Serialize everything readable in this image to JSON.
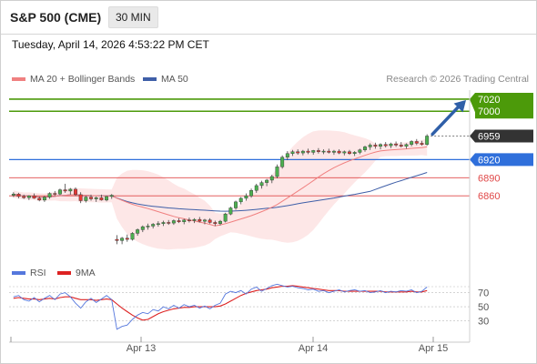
{
  "header": {
    "title": "S&P 500 (CME)",
    "timeframe": "30 MIN",
    "datetime": "Tuesday, April 14, 2026 4:53:22 PM CET"
  },
  "legend": {
    "ma20": "MA 20 + Bollinger Bands",
    "ma50": "MA 50",
    "copyright": "Research © 2026 Trading Central",
    "rsi": "RSI",
    "ma9": "9MA"
  },
  "colors": {
    "up": "#4caf50",
    "down": "#e53935",
    "ma20": "#f08080",
    "ma50": "#3f5fa8",
    "band": "#fde3e3",
    "resistance": "#4c9a0a",
    "pivot": "#2f6fdb",
    "support": "#e04848",
    "rsi": "#5577dd",
    "ma9": "#dd2222",
    "current": "#333333"
  },
  "chart_data": [
    {
      "type": "candlestick",
      "ylim": [
        6770,
        7035
      ],
      "xaxis": {
        "ticks": [
          "Apr 13",
          "Apr 14",
          "Apr 15"
        ]
      },
      "current_price": "6959",
      "levels": {
        "resistance": [
          "7020",
          "7000"
        ],
        "pivot": "6920",
        "support": [
          "6890",
          "6860"
        ]
      },
      "candles": [
        [
          6861,
          6866,
          6858,
          6863
        ],
        [
          6863,
          6865,
          6856,
          6859
        ],
        [
          6859,
          6862,
          6855,
          6857
        ],
        [
          6857,
          6861,
          6853,
          6860
        ],
        [
          6860,
          6864,
          6855,
          6856
        ],
        [
          6856,
          6859,
          6851,
          6853
        ],
        [
          6853,
          6860,
          6850,
          6858
        ],
        [
          6858,
          6866,
          6855,
          6864
        ],
        [
          6864,
          6868,
          6860,
          6863
        ],
        [
          6863,
          6872,
          6861,
          6870
        ],
        [
          6870,
          6880,
          6865,
          6868
        ],
        [
          6868,
          6873,
          6862,
          6871
        ],
        [
          6871,
          6874,
          6860,
          6862
        ],
        [
          6862,
          6866,
          6848,
          6852
        ],
        [
          6852,
          6860,
          6849,
          6858
        ],
        [
          6858,
          6862,
          6852,
          6855
        ],
        [
          6855,
          6859,
          6850,
          6857
        ],
        [
          6857,
          6862,
          6852,
          6853
        ],
        [
          6853,
          6860,
          6851,
          6859
        ],
        [
          6859,
          6863,
          6855,
          6861
        ],
        [
          6788,
          6795,
          6780,
          6786
        ],
        [
          6786,
          6792,
          6780,
          6790
        ],
        [
          6790,
          6796,
          6784,
          6788
        ],
        [
          6788,
          6800,
          6786,
          6798
        ],
        [
          6798,
          6806,
          6794,
          6804
        ],
        [
          6804,
          6811,
          6800,
          6809
        ],
        [
          6809,
          6814,
          6804,
          6810
        ],
        [
          6810,
          6815,
          6806,
          6813
        ],
        [
          6813,
          6818,
          6809,
          6814
        ],
        [
          6814,
          6819,
          6810,
          6816
        ],
        [
          6816,
          6820,
          6812,
          6815
        ],
        [
          6815,
          6821,
          6812,
          6819
        ],
        [
          6819,
          6823,
          6815,
          6817
        ],
        [
          6817,
          6822,
          6813,
          6820
        ],
        [
          6820,
          6824,
          6816,
          6819
        ],
        [
          6819,
          6823,
          6815,
          6821
        ],
        [
          6821,
          6825,
          6816,
          6818
        ],
        [
          6818,
          6822,
          6813,
          6820
        ],
        [
          6820,
          6823,
          6814,
          6816
        ],
        [
          6816,
          6819,
          6810,
          6814
        ],
        [
          6814,
          6820,
          6811,
          6818
        ],
        [
          6818,
          6832,
          6816,
          6830
        ],
        [
          6830,
          6842,
          6828,
          6840
        ],
        [
          6840,
          6852,
          6837,
          6850
        ],
        [
          6850,
          6858,
          6846,
          6856
        ],
        [
          6856,
          6864,
          6852,
          6860
        ],
        [
          6860,
          6872,
          6857,
          6869
        ],
        [
          6869,
          6880,
          6865,
          6877
        ],
        [
          6877,
          6885,
          6872,
          6882
        ],
        [
          6882,
          6888,
          6876,
          6886
        ],
        [
          6886,
          6895,
          6881,
          6892
        ],
        [
          6892,
          6912,
          6889,
          6908
        ],
        [
          6908,
          6927,
          6905,
          6924
        ],
        [
          6924,
          6934,
          6919,
          6930
        ],
        [
          6930,
          6936,
          6926,
          6933
        ],
        [
          6933,
          6937,
          6928,
          6931
        ],
        [
          6931,
          6936,
          6927,
          6934
        ],
        [
          6934,
          6938,
          6929,
          6932
        ],
        [
          6932,
          6936,
          6928,
          6935
        ],
        [
          6935,
          6939,
          6930,
          6933
        ],
        [
          6933,
          6937,
          6929,
          6934
        ],
        [
          6934,
          6938,
          6930,
          6932
        ],
        [
          6932,
          6936,
          6928,
          6934
        ],
        [
          6934,
          6937,
          6929,
          6931
        ],
        [
          6931,
          6935,
          6927,
          6933
        ],
        [
          6933,
          6936,
          6928,
          6930
        ],
        [
          6930,
          6934,
          6926,
          6932
        ],
        [
          6932,
          6938,
          6929,
          6936
        ],
        [
          6936,
          6943,
          6933,
          6941
        ],
        [
          6941,
          6947,
          6936,
          6944
        ],
        [
          6944,
          6948,
          6938,
          6942
        ],
        [
          6942,
          6947,
          6937,
          6945
        ],
        [
          6945,
          6949,
          6940,
          6943
        ],
        [
          6943,
          6948,
          6939,
          6946
        ],
        [
          6946,
          6950,
          6941,
          6944
        ],
        [
          6944,
          6949,
          6940,
          6942
        ],
        [
          6942,
          6947,
          6938,
          6945
        ],
        [
          6945,
          6952,
          6942,
          6950
        ],
        [
          6950,
          6954,
          6944,
          6947
        ],
        [
          6947,
          6951,
          6943,
          6945
        ],
        [
          6945,
          6962,
          6943,
          6959
        ]
      ]
    },
    {
      "type": "line",
      "name": "RSI",
      "yticks": [
        "70",
        "50",
        "30"
      ],
      "ylim": [
        10,
        85
      ],
      "series": [
        {
          "name": "RSI",
          "values": [
            64,
            66,
            60,
            58,
            63,
            57,
            62,
            66,
            60,
            68,
            70,
            64,
            55,
            48,
            57,
            62,
            56,
            61,
            66,
            60,
            18,
            22,
            24,
            32,
            38,
            42,
            40,
            46,
            44,
            50,
            47,
            52,
            48,
            53,
            50,
            52,
            48,
            51,
            47,
            52,
            55,
            68,
            72,
            70,
            73,
            68,
            75,
            78,
            72,
            76,
            80,
            82,
            80,
            78,
            79,
            77,
            76,
            74,
            75,
            72,
            73,
            70,
            72,
            74,
            71,
            73,
            74,
            72,
            73,
            70,
            71,
            73,
            70,
            72,
            71,
            73,
            72,
            74,
            70,
            72,
            78
          ]
        },
        {
          "name": "9MA",
          "values": [
            62,
            63,
            62,
            61,
            61,
            60,
            61,
            62,
            61,
            63,
            64,
            64,
            62,
            60,
            60,
            60,
            59,
            60,
            61,
            60,
            54,
            48,
            43,
            38,
            34,
            31,
            32,
            36,
            40,
            43,
            45,
            47,
            48,
            49,
            49,
            50,
            50,
            50,
            50,
            50,
            51,
            54,
            58,
            62,
            66,
            69,
            71,
            73,
            74,
            75,
            77,
            78,
            79,
            79,
            80,
            79,
            78,
            77,
            76,
            75,
            74,
            73,
            73,
            73,
            72,
            72,
            72,
            72,
            72,
            72,
            72,
            72,
            71,
            71,
            71,
            71,
            71,
            72,
            71,
            71,
            73
          ]
        }
      ]
    }
  ]
}
